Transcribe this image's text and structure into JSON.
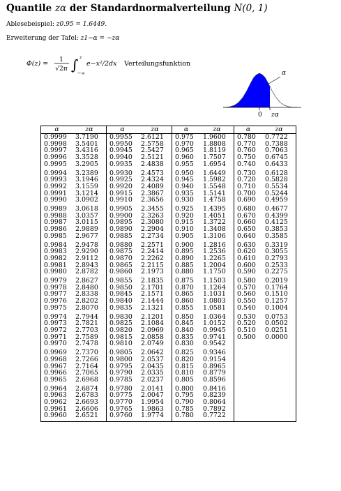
{
  "title": {
    "text": "Quantile",
    "symbol": "zα",
    "rest": "der Standardnormalverteilung",
    "dist": "N(0, 1)"
  },
  "example": {
    "label": "Ablesebeispiel:",
    "formula": "z0.95 = 1.6449."
  },
  "extension": {
    "label": "Erweiterung der Tafel:",
    "formula": "z1−α = −zα"
  },
  "cdf": {
    "lhs": "Φ(z) =",
    "frac_num": "1",
    "frac_den": "√2π",
    "integrand": "e−x²/2dx",
    "upper": "z",
    "lower": "−∞",
    "label": "Verteilungsfunktion"
  },
  "figure": {
    "alpha_label": "α",
    "zero_label": "0",
    "z_label": "zα",
    "fill_color": "#0000ff"
  },
  "table": {
    "headers": [
      "α",
      "zα",
      "α",
      "zα",
      "α",
      "zα",
      "α",
      "zα"
    ],
    "col1": [
      [
        "0.9999",
        "3.7190"
      ],
      [
        "0.9998",
        "3.5401"
      ],
      [
        "0.9997",
        "3.4316"
      ],
      [
        "0.9996",
        "3.3528"
      ],
      [
        "0.9995",
        "3.2905"
      ],
      [
        "0.9994",
        "3.2389"
      ],
      [
        "0.9993",
        "3.1946"
      ],
      [
        "0.9992",
        "3.1559"
      ],
      [
        "0.9991",
        "3.1214"
      ],
      [
        "0.9990",
        "3.0902"
      ],
      [
        "0.9989",
        "3.0618"
      ],
      [
        "0.9988",
        "3.0357"
      ],
      [
        "0.9987",
        "3.0115"
      ],
      [
        "0.9986",
        "2.9889"
      ],
      [
        "0.9985",
        "2.9677"
      ],
      [
        "0.9984",
        "2.9478"
      ],
      [
        "0.9983",
        "2.9290"
      ],
      [
        "0.9982",
        "2.9112"
      ],
      [
        "0.9981",
        "2.8943"
      ],
      [
        "0.9980",
        "2.8782"
      ],
      [
        "0.9979",
        "2.8627"
      ],
      [
        "0.9978",
        "2.8480"
      ],
      [
        "0.9977",
        "2.8338"
      ],
      [
        "0.9976",
        "2.8202"
      ],
      [
        "0.9975",
        "2.8070"
      ],
      [
        "0.9974",
        "2.7944"
      ],
      [
        "0.9973",
        "2.7821"
      ],
      [
        "0.9972",
        "2.7703"
      ],
      [
        "0.9971",
        "2.7589"
      ],
      [
        "0.9970",
        "2.7478"
      ],
      [
        "0.9969",
        "2.7370"
      ],
      [
        "0.9968",
        "2.7266"
      ],
      [
        "0.9967",
        "2.7164"
      ],
      [
        "0.9966",
        "2.7065"
      ],
      [
        "0.9965",
        "2.6968"
      ],
      [
        "0.9964",
        "2.6874"
      ],
      [
        "0.9963",
        "2.6783"
      ],
      [
        "0.9962",
        "2.6693"
      ],
      [
        "0.9961",
        "2.6606"
      ],
      [
        "0.9960",
        "2.6521"
      ]
    ],
    "col2": [
      [
        "0.9955",
        "2.6121"
      ],
      [
        "0.9950",
        "2.5758"
      ],
      [
        "0.9945",
        "2.5427"
      ],
      [
        "0.9940",
        "2.5121"
      ],
      [
        "0.9935",
        "2.4838"
      ],
      [
        "0.9930",
        "2.4573"
      ],
      [
        "0.9925",
        "2.4324"
      ],
      [
        "0.9920",
        "2.4089"
      ],
      [
        "0.9915",
        "2.3867"
      ],
      [
        "0.9910",
        "2.3656"
      ],
      [
        "0.9905",
        "2.3455"
      ],
      [
        "0.9900",
        "2.3263"
      ],
      [
        "0.9895",
        "2.3080"
      ],
      [
        "0.9890",
        "2.2904"
      ],
      [
        "0.9885",
        "2.2734"
      ],
      [
        "0.9880",
        "2.2571"
      ],
      [
        "0.9875",
        "2.2414"
      ],
      [
        "0.9870",
        "2.2262"
      ],
      [
        "0.9865",
        "2.2115"
      ],
      [
        "0.9860",
        "2.1973"
      ],
      [
        "0.9855",
        "2.1835"
      ],
      [
        "0.9850",
        "2.1701"
      ],
      [
        "0.9845",
        "2.1571"
      ],
      [
        "0.9840",
        "2.1444"
      ],
      [
        "0.9835",
        "2.1321"
      ],
      [
        "0.9830",
        "2.1201"
      ],
      [
        "0.9825",
        "2.1084"
      ],
      [
        "0.9820",
        "2.0969"
      ],
      [
        "0.9815",
        "2.0858"
      ],
      [
        "0.9810",
        "2.0749"
      ],
      [
        "0.9805",
        "2.0642"
      ],
      [
        "0.9800",
        "2.0537"
      ],
      [
        "0.9795",
        "2.0435"
      ],
      [
        "0.9790",
        "2.0335"
      ],
      [
        "0.9785",
        "2.0237"
      ],
      [
        "0.9780",
        "2.0141"
      ],
      [
        "0.9775",
        "2.0047"
      ],
      [
        "0.9770",
        "1.9954"
      ],
      [
        "0.9765",
        "1.9863"
      ],
      [
        "0.9760",
        "1.9774"
      ]
    ],
    "col3": [
      [
        "0.975",
        "1.9600"
      ],
      [
        "0.970",
        "1.8808"
      ],
      [
        "0.965",
        "1.8119"
      ],
      [
        "0.960",
        "1.7507"
      ],
      [
        "0.955",
        "1.6954"
      ],
      [
        "0.950",
        "1.6449"
      ],
      [
        "0.945",
        "1.5982"
      ],
      [
        "0.940",
        "1.5548"
      ],
      [
        "0.935",
        "1.5141"
      ],
      [
        "0.930",
        "1.4758"
      ],
      [
        "0.925",
        "1.4395"
      ],
      [
        "0.920",
        "1.4051"
      ],
      [
        "0.915",
        "1.3722"
      ],
      [
        "0.910",
        "1.3408"
      ],
      [
        "0.905",
        "1.3106"
      ],
      [
        "0.900",
        "1.2816"
      ],
      [
        "0.895",
        "1.2536"
      ],
      [
        "0.890",
        "1.2265"
      ],
      [
        "0.885",
        "1.2004"
      ],
      [
        "0.880",
        "1.1750"
      ],
      [
        "0.875",
        "1.1503"
      ],
      [
        "0.870",
        "1.1264"
      ],
      [
        "0.865",
        "1.1031"
      ],
      [
        "0.860",
        "1.0803"
      ],
      [
        "0.855",
        "1.0581"
      ],
      [
        "0.850",
        "1.0364"
      ],
      [
        "0.845",
        "1.0152"
      ],
      [
        "0.840",
        "0.9945"
      ],
      [
        "0.835",
        "0.9741"
      ],
      [
        "0.830",
        "0.9542"
      ],
      [
        "0.825",
        "0.9346"
      ],
      [
        "0.820",
        "0.9154"
      ],
      [
        "0.815",
        "0.8965"
      ],
      [
        "0.810",
        "0.8779"
      ],
      [
        "0.805",
        "0.8596"
      ],
      [
        "0.800",
        "0.8416"
      ],
      [
        "0.795",
        "0.8239"
      ],
      [
        "0.790",
        "0.8064"
      ],
      [
        "0.785",
        "0.7892"
      ],
      [
        "0.780",
        "0.7722"
      ]
    ],
    "col4": [
      [
        "0.780",
        "0.7722"
      ],
      [
        "0.770",
        "0.7388"
      ],
      [
        "0.760",
        "0.7063"
      ],
      [
        "0.750",
        "0.6745"
      ],
      [
        "0.740",
        "0.6433"
      ],
      [
        "0.730",
        "0.6128"
      ],
      [
        "0.720",
        "0.5828"
      ],
      [
        "0.710",
        "0.5534"
      ],
      [
        "0.700",
        "0.5244"
      ],
      [
        "0.690",
        "0.4959"
      ],
      [
        "0.680",
        "0.4677"
      ],
      [
        "0.670",
        "0.4399"
      ],
      [
        "0.660",
        "0.4125"
      ],
      [
        "0.650",
        "0.3853"
      ],
      [
        "0.640",
        "0.3585"
      ],
      [
        "0.630",
        "0.3319"
      ],
      [
        "0.620",
        "0.3055"
      ],
      [
        "0.610",
        "0.2793"
      ],
      [
        "0.600",
        "0.2533"
      ],
      [
        "0.590",
        "0.2275"
      ],
      [
        "0.580",
        "0.2019"
      ],
      [
        "0.570",
        "0.1764"
      ],
      [
        "0.560",
        "0.1510"
      ],
      [
        "0.550",
        "0.1257"
      ],
      [
        "0.540",
        "0.1004"
      ],
      [
        "0.530",
        "0.0753"
      ],
      [
        "0.520",
        "0.0502"
      ],
      [
        "0.510",
        "0.0251"
      ],
      [
        "0.500",
        "0.0000"
      ]
    ]
  }
}
